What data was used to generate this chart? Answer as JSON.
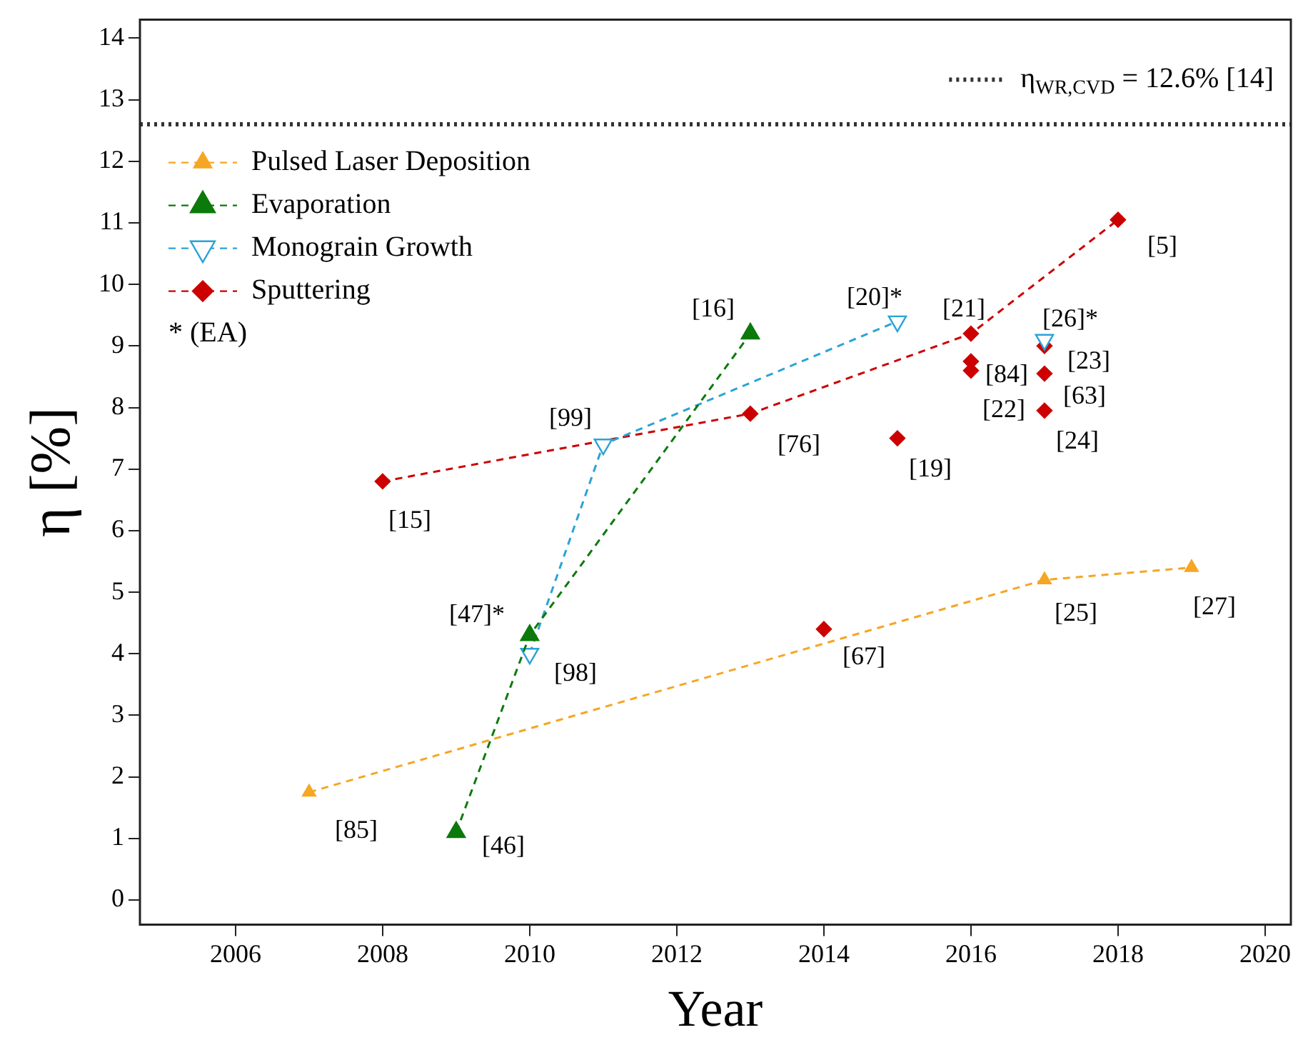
{
  "chart_data": {
    "type": "line",
    "xlabel": "Year",
    "ylabel": "η [%]",
    "xlim": [
      2004.7,
      2020.35
    ],
    "ylim": [
      -0.4,
      14.3
    ],
    "xticks": [
      2006,
      2008,
      2010,
      2012,
      2014,
      2016,
      2018,
      2020
    ],
    "yticks": [
      0,
      1,
      2,
      3,
      4,
      5,
      6,
      7,
      8,
      9,
      10,
      11,
      12,
      13,
      14
    ],
    "legend": "top left",
    "line_style": "dashed",
    "series": [
      {
        "name": "Pulsed Laser Deposition",
        "marker": "triangle",
        "color": "#f5a623",
        "x": [
          2007,
          2017,
          2019
        ],
        "values": [
          1.75,
          5.2,
          5.4
        ]
      },
      {
        "name": "Evaporation",
        "marker": "triangle",
        "color": "#0b7a0b",
        "x": [
          2009,
          2010,
          2013
        ],
        "values": [
          1.1,
          4.3,
          9.2
        ]
      },
      {
        "name": "Monograin Growth",
        "marker": "triangle_down",
        "color": "#2aa3d6",
        "x": [
          2010,
          2011,
          2015
        ],
        "values": [
          4.0,
          7.4,
          9.4
        ]
      },
      {
        "name": "Sputtering",
        "marker": "diamond",
        "color": "#cc0000",
        "x": [
          2008,
          2013,
          2016,
          2018
        ],
        "values": [
          6.8,
          7.9,
          9.2,
          11.05
        ]
      },
      {
        "type": "scatter",
        "marker": "triangle_down",
        "color": "#2aa3d6",
        "x": [
          2017
        ],
        "values": [
          9.1
        ]
      },
      {
        "type": "scatter",
        "marker": "diamond",
        "color": "#cc0000",
        "x": [
          2014,
          2015,
          2016,
          2016,
          2017,
          2017,
          2017
        ],
        "values": [
          4.4,
          7.5,
          8.75,
          8.6,
          9.0,
          8.55,
          7.95
        ]
      }
    ],
    "ref_lines": [
      {
        "axis": "y",
        "value": 12.6,
        "label": "η$_{WR,CVD}$ = 12.6% [14]",
        "color": "#333333",
        "line_style": "dotted"
      }
    ],
    "annotations": [
      "* (EA)",
      {
        "text": "[85]",
        "x": 2007,
        "y": 1.75
      },
      {
        "text": "[46]",
        "x": 2009,
        "y": 1.1
      },
      {
        "text": "[47]*",
        "x": 2010,
        "y": 4.3
      },
      {
        "text": "[98]",
        "x": 2010,
        "y": 4.0
      },
      {
        "text": "[99]",
        "x": 2011,
        "y": 7.4
      },
      {
        "text": "[15]",
        "x": 2008,
        "y": 6.8
      },
      {
        "text": "[16]",
        "x": 2013,
        "y": 9.2
      },
      {
        "text": "[20]*",
        "x": 2015,
        "y": 9.4
      },
      {
        "text": "[21]",
        "x": 2016,
        "y": 9.2
      },
      {
        "text": "[26]*",
        "x": 2017,
        "y": 9.1
      },
      {
        "text": "[23]",
        "x": 2017,
        "y": 9.0
      },
      {
        "text": "[84]",
        "x": 2016,
        "y": 8.75
      },
      {
        "text": "[63]",
        "x": 2017,
        "y": 8.55
      },
      {
        "text": "[22]",
        "x": 2016,
        "y": 8.6
      },
      {
        "text": "[24]",
        "x": 2017,
        "y": 7.95
      },
      {
        "text": "[76]",
        "x": 2013,
        "y": 7.9
      },
      {
        "text": "[19]",
        "x": 2015,
        "y": 7.5
      },
      {
        "text": "[5]",
        "x": 2018,
        "y": 11.05
      },
      {
        "text": "[67]",
        "x": 2014,
        "y": 4.4
      },
      {
        "text": "[25]",
        "x": 2017,
        "y": 5.2
      },
      {
        "text": "[27]",
        "x": 2019,
        "y": 5.4
      }
    ]
  }
}
